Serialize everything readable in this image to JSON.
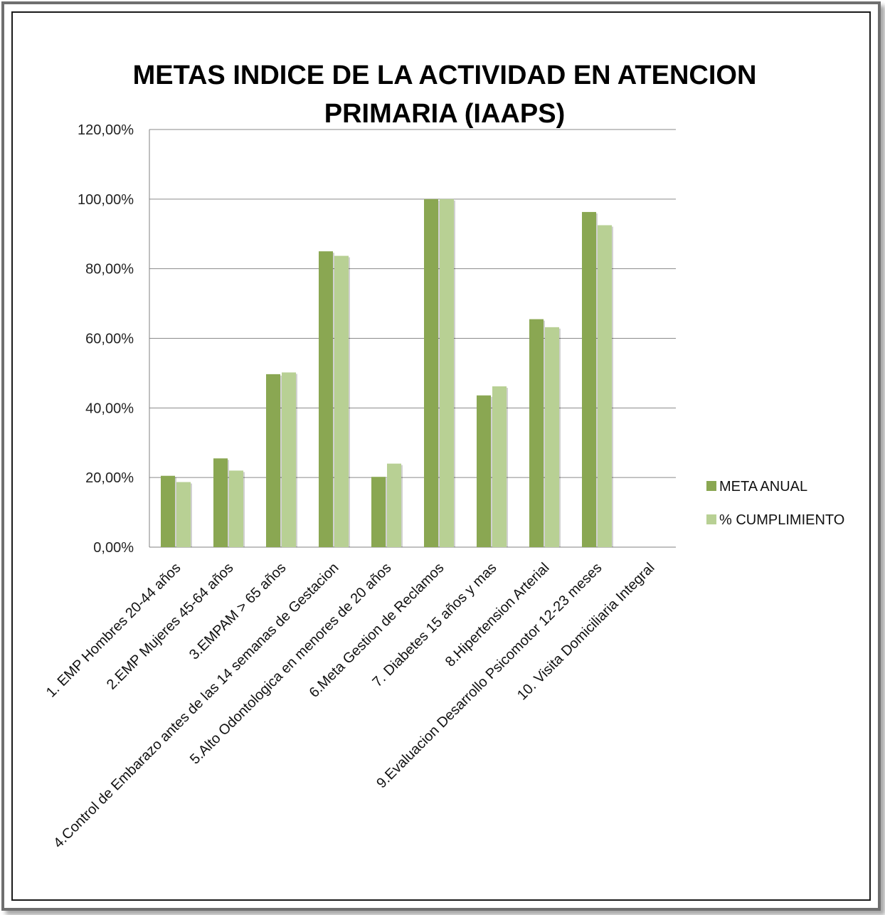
{
  "chart_data": {
    "type": "bar",
    "title_lines": [
      "METAS INDICE DE LA ACTIVIDAD EN ATENCION",
      "PRIMARIA (IAAPS)"
    ],
    "categories": [
      "1. EMP Hombres 20-44 años",
      "2.EMP Mujeres 45-64 años",
      "3.EMPAM > 65 años",
      "4.Control de Embarazo antes de las 14 semanas de Gestacion",
      "5.Alto Odontologica en menores de 20 años",
      "6.Meta Gestion de Reclamos",
      "7. Diabetes 15 años y mas",
      "8.Hipertension Arterial",
      "9.Evaluacion Desarrollo Psicomotor 12-23 meses",
      "10. Visita Domiciliaria Integral"
    ],
    "series": [
      {
        "name": "META ANUAL",
        "color": "#8aa752",
        "values": [
          20.5,
          25.5,
          49.7,
          85.0,
          20.2,
          100.0,
          43.6,
          65.5,
          96.3,
          0.0
        ]
      },
      {
        "name": "% CUMPLIMIENTO",
        "color": "#b8d094",
        "values": [
          18.7,
          22.0,
          50.2,
          83.7,
          24.0,
          100.0,
          46.2,
          63.2,
          92.5,
          0.0
        ]
      }
    ],
    "ylim": [
      0,
      120
    ],
    "yticks": [
      "0,00%",
      "20,00%",
      "40,00%",
      "60,00%",
      "80,00%",
      "100,00%",
      "120,00%"
    ],
    "grid": true,
    "legend_position": "right"
  }
}
